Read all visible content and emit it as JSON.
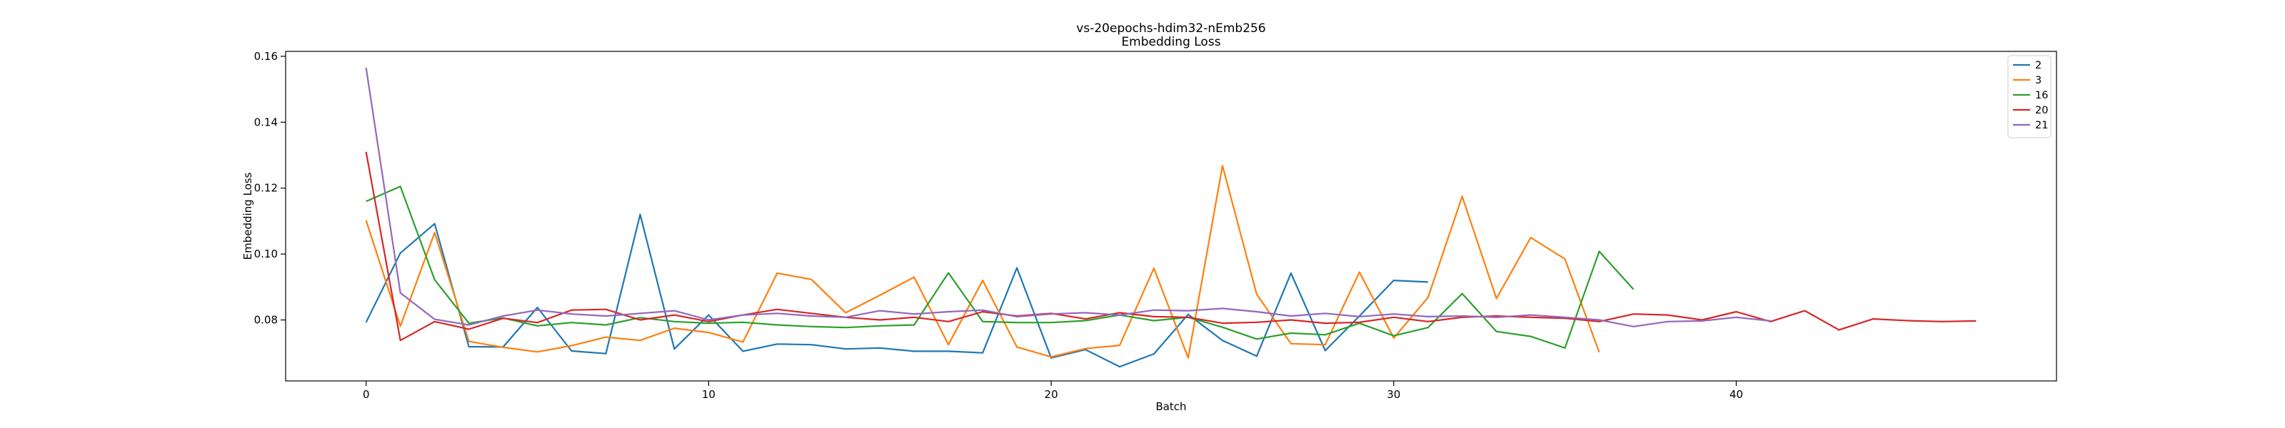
{
  "chart_data": {
    "type": "line",
    "title": "vs-20epochs-hdim32-nEmb256",
    "subtitle": "Embedding Loss",
    "xlabel": "Batch",
    "ylabel": "Embedding Loss",
    "xlim": [
      -2.35,
      49.35
    ],
    "ylim": [
      0.0615,
      0.1615
    ],
    "xticks": [
      0,
      10,
      20,
      30,
      40
    ],
    "yticks": [
      0.08,
      0.1,
      0.12,
      0.14,
      0.16
    ],
    "ytick_labels": [
      "0.08",
      "0.10",
      "0.12",
      "0.14",
      "0.16"
    ],
    "grid": false,
    "legend_position": "top-right",
    "series": [
      {
        "name": "2",
        "color": "#1f77b4",
        "values": [
          0.0793,
          0.1003,
          0.1092,
          0.0719,
          0.0718,
          0.0838,
          0.0706,
          0.0698,
          0.112,
          0.0712,
          0.0815,
          0.0705,
          0.0727,
          0.0725,
          0.0712,
          0.0715,
          0.0705,
          0.0705,
          0.07,
          0.0958,
          0.0685,
          0.071,
          0.0658,
          0.0697,
          0.0817,
          0.0738,
          0.069,
          0.0942,
          0.0707,
          0.0812,
          0.092,
          0.0915
        ]
      },
      {
        "name": "3",
        "color": "#ff7f0e",
        "values": [
          0.1102,
          0.0781,
          0.1065,
          0.0735,
          0.0717,
          0.0703,
          0.0722,
          0.0748,
          0.0738,
          0.0775,
          0.0762,
          0.0733,
          0.0942,
          0.0923,
          0.0822,
          0.0875,
          0.093,
          0.0725,
          0.092,
          0.0718,
          0.0688,
          0.0713,
          0.0723,
          0.0957,
          0.0685,
          0.1268,
          0.0878,
          0.0728,
          0.0725,
          0.0945,
          0.0745,
          0.0868,
          0.1175,
          0.0865,
          0.105,
          0.0985,
          0.0702
        ]
      },
      {
        "name": "16",
        "color": "#2ca02c",
        "values": [
          0.116,
          0.1205,
          0.0922,
          0.079,
          0.0806,
          0.0782,
          0.0792,
          0.0785,
          0.0807,
          0.0795,
          0.079,
          0.0793,
          0.0785,
          0.078,
          0.0777,
          0.0782,
          0.0785,
          0.0943,
          0.0795,
          0.0792,
          0.0792,
          0.0798,
          0.0815,
          0.0798,
          0.0808,
          0.0778,
          0.0742,
          0.076,
          0.0755,
          0.079,
          0.0752,
          0.0777,
          0.088,
          0.0765,
          0.075,
          0.0715,
          0.1008,
          0.0893
        ]
      },
      {
        "name": "20",
        "color": "#d62728",
        "values": [
          0.131,
          0.0738,
          0.0795,
          0.0772,
          0.0805,
          0.0792,
          0.083,
          0.0832,
          0.08,
          0.0815,
          0.0795,
          0.0815,
          0.0832,
          0.082,
          0.0808,
          0.08,
          0.0808,
          0.0795,
          0.0825,
          0.0812,
          0.082,
          0.0803,
          0.0822,
          0.081,
          0.0808,
          0.079,
          0.0793,
          0.08,
          0.079,
          0.0793,
          0.0808,
          0.0795,
          0.0808,
          0.0812,
          0.0808,
          0.0805,
          0.0795,
          0.0818,
          0.0815,
          0.08,
          0.0825,
          0.0795,
          0.0828,
          0.077,
          0.0803,
          0.0798,
          0.0795,
          0.0797
        ]
      },
      {
        "name": "21",
        "color": "#9467bd",
        "values": [
          0.1565,
          0.0882,
          0.0802,
          0.0785,
          0.0812,
          0.083,
          0.0818,
          0.0812,
          0.082,
          0.0828,
          0.08,
          0.0815,
          0.082,
          0.0812,
          0.0808,
          0.0828,
          0.0818,
          0.0825,
          0.083,
          0.081,
          0.0818,
          0.0822,
          0.0815,
          0.083,
          0.0828,
          0.0835,
          0.0825,
          0.0812,
          0.082,
          0.081,
          0.0818,
          0.081,
          0.0812,
          0.0808,
          0.0815,
          0.0808,
          0.08,
          0.078,
          0.0795,
          0.0797,
          0.0808,
          0.0797
        ]
      }
    ]
  }
}
